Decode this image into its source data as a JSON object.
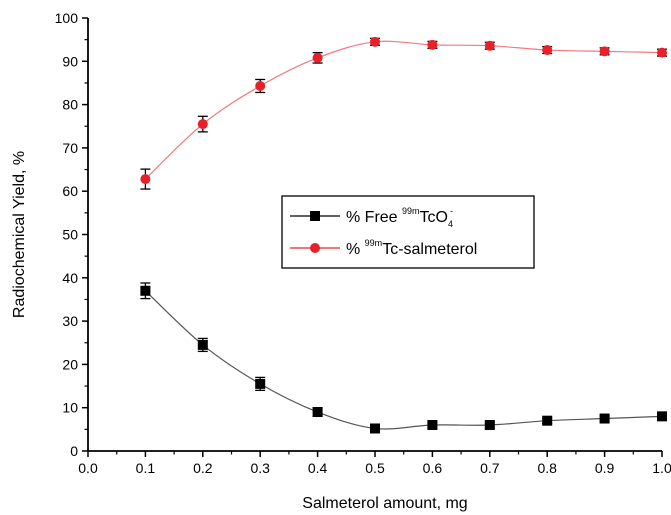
{
  "chart_data": {
    "type": "line",
    "xlabel": "Salmeterol amount, mg",
    "ylabel": "Radiochemical Yield, %",
    "xlim": [
      0.0,
      1.0
    ],
    "ylim": [
      0,
      100
    ],
    "x_ticks": [
      "0.0",
      "0.1",
      "0.2",
      "0.3",
      "0.4",
      "0.5",
      "0.6",
      "0.7",
      "0.8",
      "0.9",
      "1.0"
    ],
    "y_ticks": [
      "0",
      "10",
      "20",
      "30",
      "40",
      "50",
      "60",
      "70",
      "80",
      "90",
      "100"
    ],
    "grid": false,
    "legend_position": "center-right",
    "x": [
      0.1,
      0.2,
      0.3,
      0.4,
      0.5,
      0.6,
      0.7,
      0.8,
      0.9,
      1.0
    ],
    "series": [
      {
        "name": "% Free 99mTcO4-",
        "legend_parts": {
          "prefix": "% Free ",
          "sup1": "99m",
          "main": "TcO",
          "sub": "4",
          "sup2": "-"
        },
        "color": "#000000",
        "marker": "square",
        "values": [
          37,
          24.5,
          15.5,
          9,
          5.2,
          6,
          6,
          7,
          7.5,
          8
        ],
        "errors": [
          1.8,
          1.5,
          1.5,
          1.0,
          0.6,
          0.6,
          0.6,
          0.6,
          0.6,
          0.6
        ]
      },
      {
        "name": "% 99mTc-salmeterol",
        "legend_parts": {
          "prefix": "% ",
          "sup1": "99m",
          "main": "Tc-salmeterol"
        },
        "color": "#e8202a",
        "marker": "circle",
        "values": [
          62.8,
          75.5,
          84.3,
          90.8,
          94.5,
          93.8,
          93.6,
          92.6,
          92.3,
          92
        ],
        "errors": [
          2.3,
          1.8,
          1.5,
          1.2,
          0.8,
          0.8,
          0.8,
          0.8,
          0.8,
          0.8
        ]
      }
    ]
  }
}
